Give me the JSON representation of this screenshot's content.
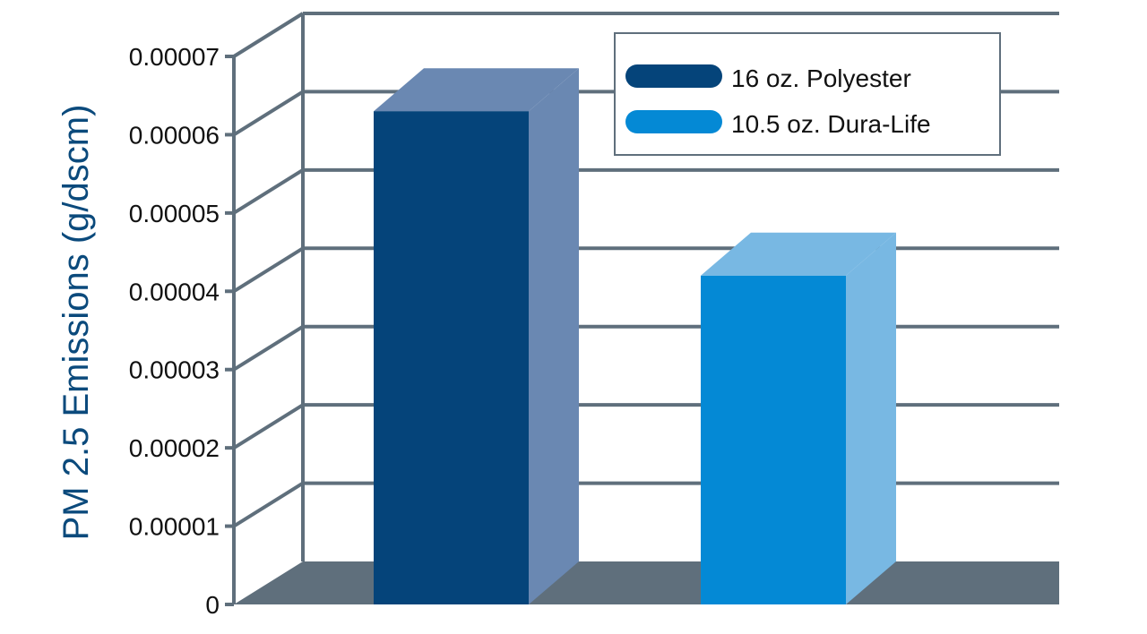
{
  "chart_data": {
    "type": "bar",
    "style": "3d",
    "title": "",
    "xlabel": "",
    "ylabel": "PM 2.5 Emissions (g/dscm)",
    "ylim": [
      0,
      7e-05
    ],
    "yticks": [
      "0",
      "0.00001",
      "0.00002",
      "0.00003",
      "0.00004",
      "0.00005",
      "0.00006",
      "0.00007"
    ],
    "grid": true,
    "legend_position": "top-right",
    "series": [
      {
        "name": "16 oz. Polyester",
        "value": 6.3e-05,
        "color": "#05447a",
        "side_color": "#6a88b2"
      },
      {
        "name": "10.5 oz. Dura-Life",
        "value": 4.2e-05,
        "color": "#0489d5",
        "side_color": "#78b8e3"
      }
    ],
    "colors": {
      "axis": "#5f6f7c",
      "floor": "#5f6f7c",
      "ylabel": "#0b4a7c"
    }
  }
}
